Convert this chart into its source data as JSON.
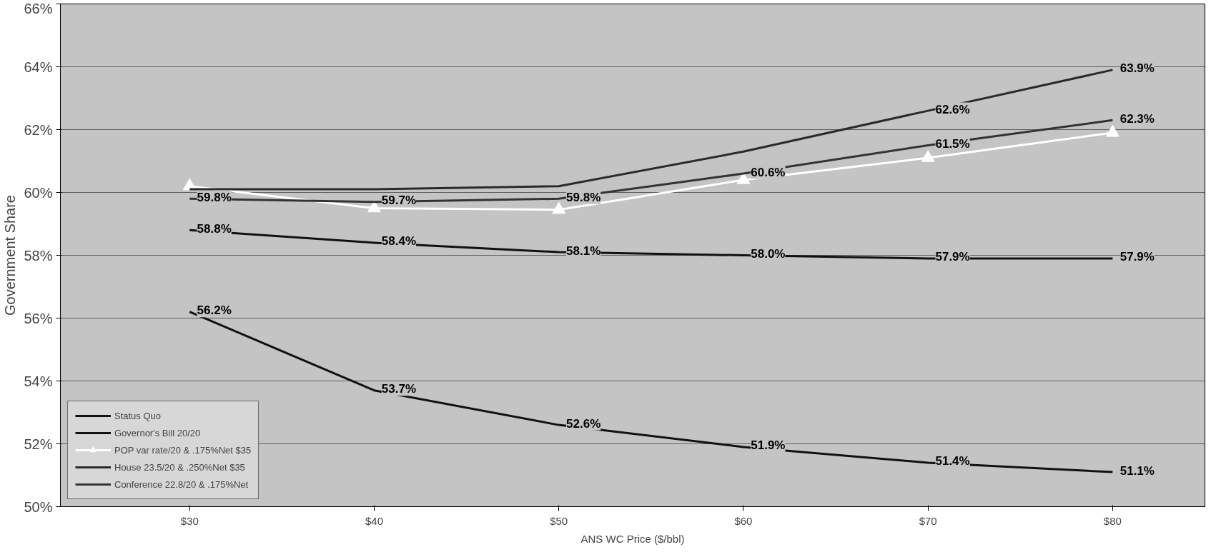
{
  "chart_data": {
    "type": "line",
    "xlabel": "ANS WC Price ($/bbl)",
    "ylabel": "Government Share",
    "categories": [
      "$30",
      "$40",
      "$50",
      "$60",
      "$70",
      "$80"
    ],
    "ylim": [
      50,
      66
    ],
    "yticks": [
      {
        "value": 50,
        "label": "50%"
      },
      {
        "value": 52,
        "label": "52%"
      },
      {
        "value": 54,
        "label": "54%"
      },
      {
        "value": 56,
        "label": "56%"
      },
      {
        "value": 58,
        "label": "58%"
      },
      {
        "value": 60,
        "label": "60%"
      },
      {
        "value": 62,
        "label": "62%"
      },
      {
        "value": 64,
        "label": "64%"
      },
      {
        "value": 66,
        "label": "66%"
      }
    ],
    "grid": "y",
    "legend": "bottom left",
    "series": [
      {
        "name": "Status Quo",
        "color": "#111111",
        "marker": "none",
        "values": [
          56.2,
          53.7,
          52.6,
          51.9,
          51.4,
          51.1
        ],
        "value_labels": [
          "56.2%",
          "53.7%",
          "52.6%",
          "51.9%",
          "51.4%",
          "51.1%"
        ]
      },
      {
        "name": "Governor's Bill 20/20",
        "color": "#111111",
        "marker": "none",
        "values": [
          58.8,
          58.4,
          58.1,
          58.0,
          57.9,
          57.9
        ],
        "value_labels": [
          "58.8%",
          "58.4%",
          "58.1%",
          "58.0%",
          "57.9%",
          "57.9%"
        ]
      },
      {
        "name": "POP var rate/20 & .175%Net $35",
        "color": "#ffffff",
        "marker": "triangle",
        "values": [
          60.2,
          59.5,
          59.45,
          60.4,
          61.1,
          61.9
        ]
      },
      {
        "name": "House 23.5/20 & .250%Net $35",
        "color": "#2a2a2a",
        "marker": "none",
        "values": [
          60.1,
          60.1,
          60.2,
          61.3,
          62.6,
          63.9
        ],
        "value_labels": [
          null,
          null,
          null,
          null,
          "62.6%",
          "63.9%"
        ]
      },
      {
        "name": "Conference 22.8/20 & .175%Net",
        "color": "#333333",
        "marker": "none",
        "values": [
          59.8,
          59.7,
          59.8,
          60.6,
          61.5,
          62.3
        ],
        "value_labels": [
          "59.8%",
          "59.7%",
          "59.8%",
          "60.6%",
          "61.5%",
          "62.3%"
        ]
      }
    ]
  }
}
